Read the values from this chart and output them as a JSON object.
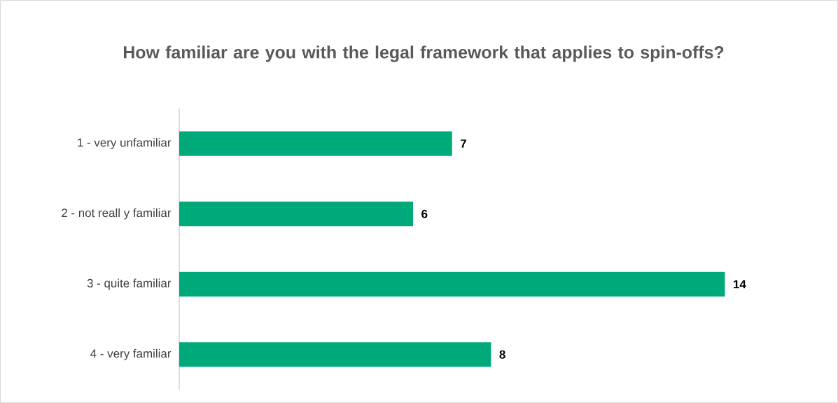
{
  "chart_data": {
    "type": "bar",
    "orientation": "horizontal",
    "title": "How familiar are you with the legal framework that applies to spin-offs?",
    "categories": [
      "1 - very unfamiliar",
      "2 - not reall y familiar",
      "3 - quite familiar",
      "4 - very familiar"
    ],
    "values": [
      7,
      6,
      14,
      8
    ],
    "color": "#00a97a",
    "data_labels": true,
    "tick_labels": "y"
  }
}
